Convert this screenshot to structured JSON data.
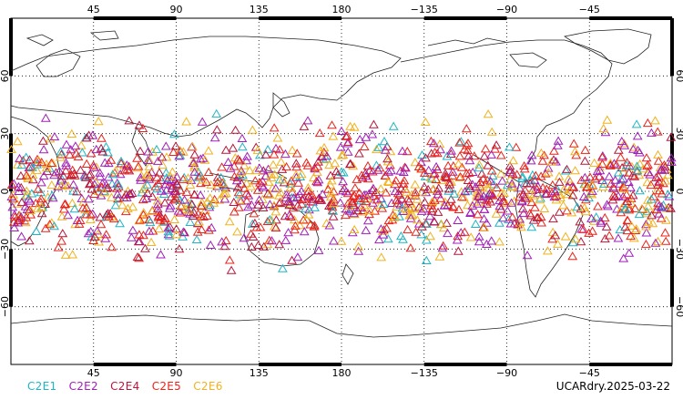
{
  "map": {
    "lon_ticks_top": [
      "45",
      "90",
      "135",
      "180",
      "−135",
      "−90",
      "−45"
    ],
    "lon_ticks_bottom": [
      "45",
      "90",
      "135",
      "180",
      "−135",
      "−90",
      "−45"
    ],
    "lat_ticks_left": [
      "60",
      "30",
      "0",
      "−30",
      "−60"
    ],
    "lat_ticks_right": [
      "60",
      "30",
      "0",
      "−30",
      "−60"
    ],
    "lat_values": [
      60,
      30,
      0,
      -30,
      -60
    ],
    "lon_values": [
      45,
      90,
      135,
      180,
      225,
      270,
      315
    ],
    "lon_range": [
      0,
      360
    ],
    "lat_range": [
      -90,
      90
    ],
    "marker": "open-triangle",
    "observation_lat_band": [
      -45,
      45
    ]
  },
  "legend": [
    {
      "label": "C2E1",
      "color": "#1fb5c4"
    },
    {
      "label": "C2E2",
      "color": "#a01fb8"
    },
    {
      "label": "C2E4",
      "color": "#b5173d"
    },
    {
      "label": "C2E5",
      "color": "#e8231a"
    },
    {
      "label": "C2E6",
      "color": "#f0b21e"
    }
  ],
  "source_label": "UCARdry.2025-03-22"
}
